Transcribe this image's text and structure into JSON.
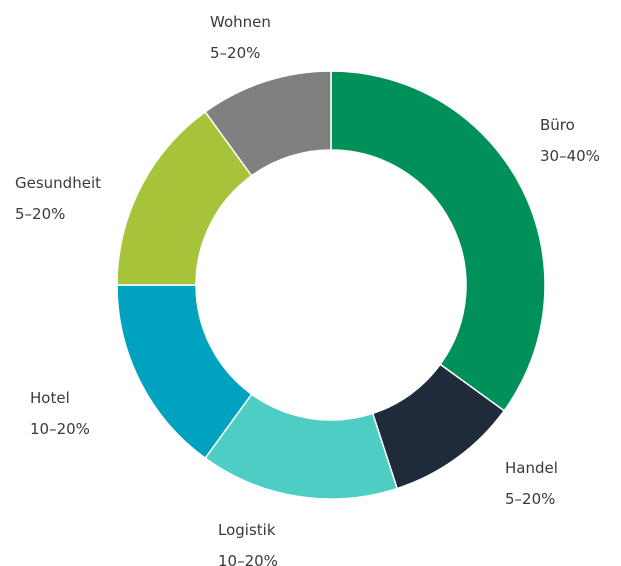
{
  "chart_data": {
    "type": "donut",
    "categories": [
      "Büro",
      "Handel",
      "Logistik",
      "Hotel",
      "Gesundheit",
      "Wohnen"
    ],
    "ranges": [
      "30–40%",
      "5–20%",
      "10–20%",
      "10–20%",
      "5–20%",
      "5–20%"
    ],
    "values": [
      35,
      10,
      15,
      15,
      15,
      10
    ],
    "colors": [
      "#00915a",
      "#1f2b3a",
      "#4ecdc4",
      "#00a3bf",
      "#a6c33a",
      "#808080"
    ]
  }
}
